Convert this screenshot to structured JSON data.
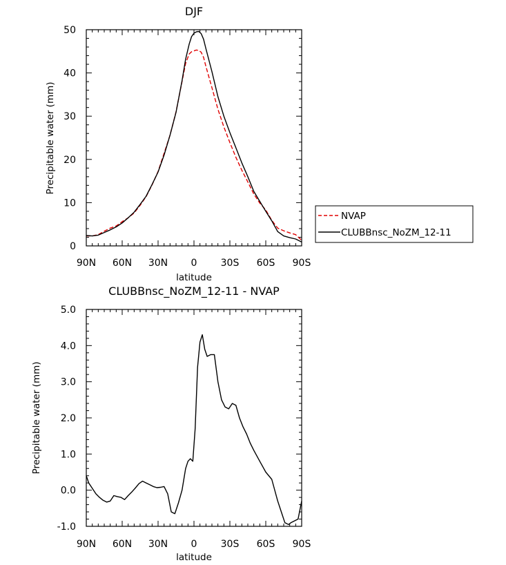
{
  "chart_data": [
    {
      "type": "line",
      "title": "DJF",
      "xlabel": "latitude",
      "ylabel": "Precipitable water (mm)",
      "x_tick_labels": [
        "90N",
        "60N",
        "30N",
        "0",
        "30S",
        "60S",
        "90S"
      ],
      "x_ticks": [
        -90,
        -60,
        -30,
        0,
        30,
        60,
        90
      ],
      "xlim": [
        -90,
        90
      ],
      "ylim": [
        0,
        50
      ],
      "y_ticks": [
        0,
        10,
        20,
        30,
        40,
        50
      ],
      "y_tick_labels": [
        "0",
        "10",
        "20",
        "30",
        "40",
        "50"
      ],
      "legend_position": "right",
      "series": [
        {
          "name": "NVAP",
          "color": "#e00000",
          "style": "dashed",
          "x": [
            -90,
            -85,
            -80,
            -75,
            -70,
            -65,
            -60,
            -55,
            -50,
            -45,
            -40,
            -35,
            -30,
            -25,
            -20,
            -15,
            -10,
            -7,
            -4,
            -2,
            0,
            2,
            4,
            6,
            8,
            10,
            15,
            20,
            25,
            30,
            35,
            40,
            45,
            50,
            55,
            60,
            65,
            70,
            75,
            80,
            85,
            90
          ],
          "y": [
            2.3,
            2.3,
            2.6,
            3.4,
            4.1,
            4.6,
            5.6,
            6.5,
            7.6,
            9.4,
            11.4,
            14.1,
            17.2,
            21.4,
            25.6,
            31.0,
            38.0,
            42.2,
            44.4,
            44.9,
            45.1,
            45.3,
            45.2,
            44.8,
            43.6,
            41.5,
            36.6,
            31.6,
            27.5,
            23.9,
            20.5,
            17.5,
            14.8,
            12.0,
            9.9,
            8.3,
            5.9,
            4.1,
            3.5,
            3.0,
            2.6,
            1.3
          ]
        },
        {
          "name": "CLUBBnsc_NoZM_12-11",
          "color": "#000000",
          "style": "solid",
          "x": [
            -90,
            -85,
            -80,
            -75,
            -70,
            -65,
            -60,
            -55,
            -50,
            -45,
            -40,
            -35,
            -30,
            -25,
            -20,
            -15,
            -10,
            -7,
            -4,
            -2,
            0,
            2,
            4,
            6,
            8,
            10,
            15,
            20,
            25,
            30,
            35,
            40,
            45,
            50,
            55,
            60,
            65,
            70,
            75,
            80,
            85,
            90
          ],
          "y": [
            2.4,
            2.3,
            2.5,
            3.1,
            3.7,
            4.4,
            5.3,
            6.5,
            7.8,
            9.6,
            11.5,
            14.2,
            17.1,
            21.0,
            25.6,
            30.9,
            38.2,
            43.2,
            46.7,
            48.4,
            49.2,
            49.5,
            49.6,
            49.1,
            47.8,
            45.6,
            40.3,
            34.5,
            30.0,
            26.2,
            22.7,
            19.2,
            16.0,
            12.6,
            10.3,
            8.0,
            5.8,
            3.3,
            2.3,
            1.9,
            1.6,
            0.9
          ]
        }
      ]
    },
    {
      "type": "line",
      "title": "CLUBBnsc_NoZM_12-11 - NVAP",
      "xlabel": "latitude",
      "ylabel": "Precipitable water (mm)",
      "x_tick_labels": [
        "90N",
        "60N",
        "30N",
        "0",
        "30S",
        "60S",
        "90S"
      ],
      "x_ticks": [
        -90,
        -60,
        -30,
        0,
        30,
        60,
        90
      ],
      "xlim": [
        -90,
        90
      ],
      "ylim": [
        -1.0,
        5.0
      ],
      "y_ticks": [
        -1.0,
        0.0,
        1.0,
        2.0,
        3.0,
        4.0,
        5.0
      ],
      "y_tick_labels": [
        "-1.0",
        "0.0",
        "1.0",
        "2.0",
        "3.0",
        "4.0",
        "5.0"
      ],
      "series": [
        {
          "color": "#000000",
          "style": "solid",
          "x": [
            -90,
            -88,
            -85,
            -82,
            -79,
            -76,
            -73,
            -70,
            -67,
            -64,
            -61,
            -58,
            -55,
            -52,
            -49,
            -46,
            -43,
            -40,
            -37,
            -34,
            -31,
            -28,
            -25,
            -22,
            -19,
            -16,
            -13,
            -10,
            -7,
            -5,
            -3,
            -1,
            1,
            3,
            5,
            7,
            9,
            11,
            14,
            17,
            20,
            23,
            26,
            29,
            32,
            35,
            38,
            41,
            44,
            47,
            50,
            55,
            60,
            65,
            70,
            73,
            76,
            79,
            81,
            84,
            87,
            90
          ],
          "y": [
            0.4,
            0.2,
            0.05,
            -0.1,
            -0.2,
            -0.28,
            -0.33,
            -0.3,
            -0.15,
            -0.18,
            -0.2,
            -0.26,
            -0.15,
            -0.05,
            0.06,
            0.18,
            0.25,
            0.2,
            0.15,
            0.1,
            0.07,
            0.08,
            0.1,
            -0.1,
            -0.6,
            -0.65,
            -0.35,
            0.0,
            0.6,
            0.8,
            0.87,
            0.8,
            1.7,
            3.4,
            4.1,
            4.3,
            3.9,
            3.7,
            3.75,
            3.75,
            3.0,
            2.5,
            2.3,
            2.25,
            2.4,
            2.35,
            2.0,
            1.75,
            1.55,
            1.3,
            1.1,
            0.8,
            0.5,
            0.3,
            -0.3,
            -0.6,
            -0.9,
            -0.95,
            -0.9,
            -0.85,
            -0.8,
            -0.3
          ]
        }
      ]
    }
  ]
}
